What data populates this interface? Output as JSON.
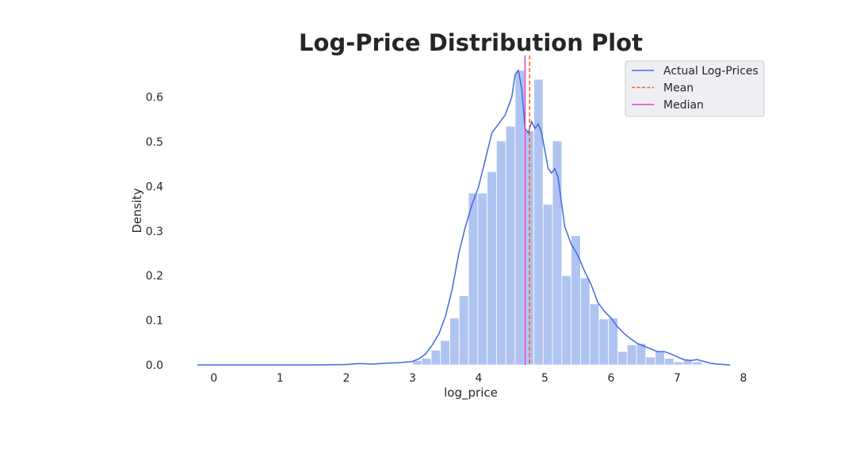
{
  "chart_data": {
    "type": "bar",
    "title": "Log-Price Distribution Plot",
    "xlabel": "log_price",
    "ylabel": "Density",
    "xlim": [
      -0.25,
      8.0
    ],
    "ylim": [
      0.0,
      0.69
    ],
    "xticks": [
      "0",
      "1",
      "2",
      "3",
      "4",
      "5",
      "6",
      "7",
      "8"
    ],
    "xtick_values": [
      0,
      1,
      2,
      3,
      4,
      5,
      6,
      7,
      8
    ],
    "yticks": [
      "0.0",
      "0.1",
      "0.2",
      "0.3",
      "0.4",
      "0.5",
      "0.6"
    ],
    "ytick_values": [
      0.0,
      0.1,
      0.2,
      0.3,
      0.4,
      0.5,
      0.6
    ],
    "grid": false,
    "histogram": {
      "bin_edges": [
        3.0,
        3.141,
        3.282,
        3.423,
        3.564,
        3.705,
        3.846,
        3.987,
        4.128,
        4.269,
        4.41,
        4.551,
        4.692,
        4.833,
        4.974,
        5.115,
        5.256,
        5.397,
        5.538,
        5.679,
        5.82,
        5.961,
        6.102,
        6.243,
        6.384,
        6.525,
        6.666,
        6.807,
        6.948,
        7.089,
        7.23,
        7.371,
        7.512
      ],
      "values": [
        0.01,
        0.015,
        0.033,
        0.055,
        0.105,
        0.155,
        0.385,
        0.385,
        0.433,
        0.502,
        0.535,
        0.66,
        0.525,
        0.64,
        0.36,
        0.502,
        0.2,
        0.29,
        0.195,
        0.137,
        0.103,
        0.105,
        0.03,
        0.045,
        0.048,
        0.018,
        0.03,
        0.015,
        0.007,
        0.012,
        0.007,
        0.002
      ],
      "color": "#b0c4f2"
    },
    "kde": {
      "name": "Actual Log-Prices",
      "color": "#4169e1",
      "x": [
        -0.25,
        0.5,
        1.5,
        2.0,
        2.2,
        2.4,
        2.6,
        2.8,
        3.0,
        3.1,
        3.2,
        3.3,
        3.4,
        3.5,
        3.6,
        3.7,
        3.8,
        3.9,
        4.0,
        4.1,
        4.2,
        4.3,
        4.4,
        4.5,
        4.55,
        4.6,
        4.65,
        4.7,
        4.75,
        4.8,
        4.85,
        4.9,
        4.95,
        5.0,
        5.05,
        5.1,
        5.15,
        5.2,
        5.3,
        5.4,
        5.5,
        5.6,
        5.7,
        5.8,
        5.9,
        6.0,
        6.1,
        6.2,
        6.3,
        6.4,
        6.5,
        6.6,
        6.7,
        6.8,
        6.9,
        7.0,
        7.1,
        7.2,
        7.3,
        7.4,
        7.5,
        7.6,
        7.8
      ],
      "y": [
        0.0,
        0.0,
        0.0,
        0.001,
        0.003,
        0.002,
        0.004,
        0.005,
        0.008,
        0.014,
        0.025,
        0.045,
        0.07,
        0.11,
        0.17,
        0.25,
        0.31,
        0.36,
        0.4,
        0.46,
        0.52,
        0.54,
        0.56,
        0.6,
        0.65,
        0.66,
        0.62,
        0.53,
        0.52,
        0.545,
        0.53,
        0.54,
        0.52,
        0.48,
        0.44,
        0.43,
        0.44,
        0.42,
        0.31,
        0.27,
        0.245,
        0.21,
        0.18,
        0.14,
        0.12,
        0.105,
        0.085,
        0.07,
        0.058,
        0.048,
        0.042,
        0.036,
        0.03,
        0.03,
        0.025,
        0.018,
        0.012,
        0.01,
        0.012,
        0.008,
        0.004,
        0.002,
        0.0
      ]
    },
    "mean": {
      "name": "Mean",
      "value": 4.77,
      "color": "#ff5722"
    },
    "median": {
      "name": "Median",
      "value": 4.7,
      "color": "#e040c8"
    },
    "legend": {
      "placement": "top-right",
      "entries": [
        {
          "label": "Actual Log-Prices",
          "style": "solid",
          "color": "#4169e1"
        },
        {
          "label": "Mean",
          "style": "dashed",
          "color": "#ff5722"
        },
        {
          "label": "Median",
          "style": "solid",
          "color": "#e040c8"
        }
      ]
    }
  }
}
